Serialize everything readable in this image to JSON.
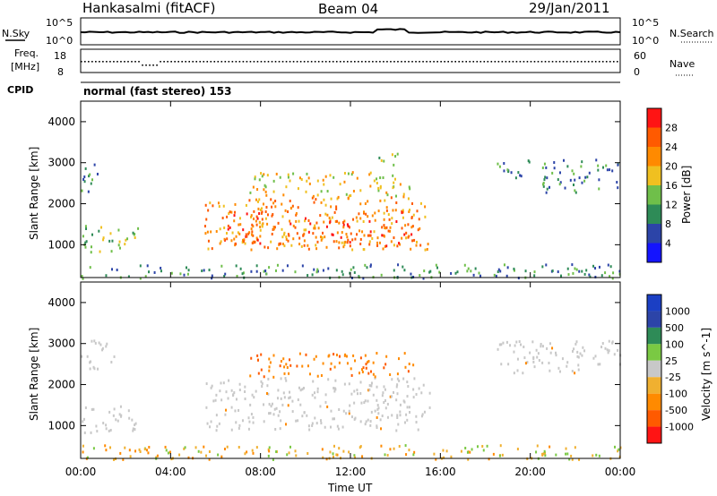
{
  "header": {
    "station": "Hankasalmi (fitACF)",
    "beam": "Beam 04",
    "date": "29/Jan/2011"
  },
  "noise_panel": {
    "left_label": "N.Sky",
    "left_ticks": [
      "10^5",
      "10^0"
    ],
    "right_label": "N.Search",
    "right_ticks": [
      "10^5",
      "10^0"
    ]
  },
  "freq_panel": {
    "left_label_1": "Freq.",
    "left_label_2": "[MHz]",
    "left_ticks": [
      "18",
      "8"
    ],
    "right_label": "Nave",
    "right_ticks": [
      "60",
      "0"
    ]
  },
  "cpid": {
    "label": "CPID",
    "text": "normal (fast stereo) 153"
  },
  "colors": {
    "power_scale": [
      "#1414ff",
      "#2c44a8",
      "#2e8b57",
      "#6fbf4a",
      "#f0c020",
      "#ff8a00",
      "#ff5a00",
      "#ff1414"
    ],
    "velocity_scale": [
      "#ff1414",
      "#ff5a00",
      "#ff8a00",
      "#f0b030",
      "#c8c8c8",
      "#7ac943",
      "#2e8b57",
      "#2c44a8",
      "#1b3fc4"
    ],
    "gray_scatter": "#c8c8c8"
  },
  "chart_data": [
    {
      "type": "heatmap",
      "title": "Power",
      "xlabel": "",
      "ylabel": "Slant Range [km]",
      "x_ticks": [
        "00:00",
        "04:00",
        "08:00",
        "12:00",
        "16:00",
        "20:00",
        "00:00"
      ],
      "xlim_hours": [
        0,
        24
      ],
      "y_ticks": [
        1000,
        2000,
        3000,
        4000
      ],
      "ylim": [
        200,
        4500
      ],
      "colorbar_label": "Power [dB]",
      "colorbar_ticks": [
        4,
        8,
        12,
        16,
        20,
        24,
        28
      ],
      "colorbar_range": [
        0,
        32
      ],
      "regions": [
        {
          "t0": 0.0,
          "t1": 2.6,
          "r0": 850,
          "r1": 1500,
          "level": 12
        },
        {
          "t0": 0.0,
          "t1": 0.8,
          "r0": 2300,
          "r1": 3100,
          "level": 8
        },
        {
          "t0": 5.5,
          "t1": 15.5,
          "r0": 900,
          "r1": 2200,
          "level": 20
        },
        {
          "t0": 6.3,
          "t1": 14.8,
          "r0": 1000,
          "r1": 1850,
          "level": 24
        },
        {
          "t0": 7.5,
          "t1": 14.8,
          "r0": 2200,
          "r1": 2800,
          "level": 16
        },
        {
          "t0": 13.2,
          "t1": 14.2,
          "r0": 2900,
          "r1": 3300,
          "level": 12
        },
        {
          "t0": 18.5,
          "t1": 20.0,
          "r0": 2600,
          "r1": 3100,
          "level": 8
        },
        {
          "t0": 20.5,
          "t1": 24.0,
          "r0": 2300,
          "r1": 3100,
          "level": 8
        },
        {
          "t0": 0.0,
          "t1": 24.0,
          "r0": 200,
          "r1": 550,
          "level": 8
        }
      ]
    },
    {
      "type": "heatmap",
      "title": "Velocity",
      "xlabel": "Time UT",
      "ylabel": "Slant Range [km]",
      "x_ticks": [
        "00:00",
        "04:00",
        "08:00",
        "12:00",
        "16:00",
        "20:00",
        "00:00"
      ],
      "xlim_hours": [
        0,
        24
      ],
      "y_ticks": [
        1000,
        2000,
        3000,
        4000
      ],
      "ylim": [
        200,
        4500
      ],
      "colorbar_label": "Velocity [m s^-1]",
      "colorbar_ticks": [
        "1000",
        "500",
        "100",
        "25",
        "-25",
        "-100",
        "-500",
        "-1000"
      ],
      "regions": [
        {
          "t0": 0.0,
          "t1": 2.6,
          "r0": 850,
          "r1": 1500,
          "kind": "gray"
        },
        {
          "t0": 5.5,
          "t1": 15.5,
          "r0": 900,
          "r1": 2200,
          "kind": "gray"
        },
        {
          "t0": 7.5,
          "t1": 14.8,
          "r0": 2200,
          "r1": 2800,
          "kind": "orange"
        },
        {
          "t0": 18.5,
          "t1": 24.0,
          "r0": 2300,
          "r1": 3100,
          "kind": "gray"
        },
        {
          "t0": 0.0,
          "t1": 1.5,
          "r0": 2400,
          "r1": 3100,
          "kind": "gray"
        },
        {
          "t0": 0.0,
          "t1": 24.0,
          "r0": 200,
          "r1": 550,
          "kind": "lowband"
        }
      ]
    }
  ]
}
